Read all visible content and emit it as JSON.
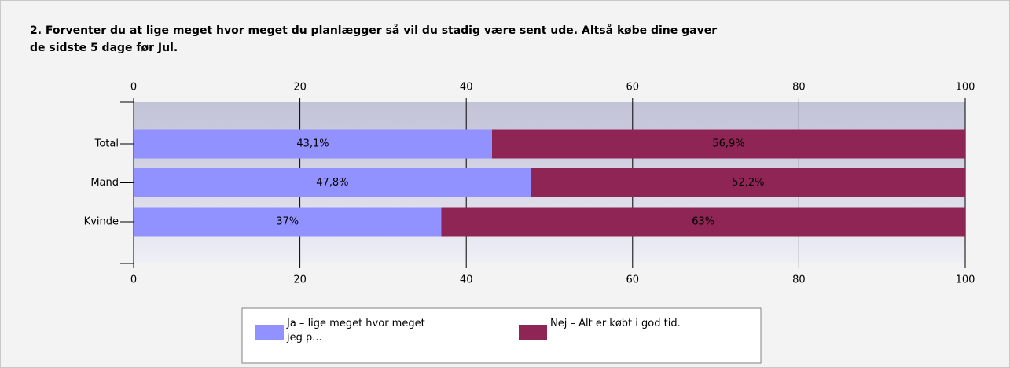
{
  "chart_data": {
    "type": "stacked_bar_horizontal",
    "title": "2. Forventer du at lige meget hvor meget du planlægger så vil du stadig være sent ude. Altså købe dine gaver\nde sidste 5 dage før Jul.",
    "categories": [
      "Total",
      "Mand",
      "Kvinde"
    ],
    "series": [
      {
        "name": "Ja – lige meget hvor meget\njeg p...",
        "color": "#9191ff",
        "values": [
          43.1,
          47.8,
          37
        ],
        "value_labels": [
          "43,1%",
          "47,8%",
          "37%"
        ]
      },
      {
        "name": "Nej – Alt er købt i god tid.",
        "color": "#8e2554",
        "values": [
          56.9,
          52.2,
          63
        ],
        "value_labels": [
          "56,9%",
          "52,2%",
          "63%"
        ]
      }
    ],
    "xlim": [
      0,
      100
    ],
    "xticks": [
      0,
      20,
      40,
      60,
      80,
      100
    ],
    "grid": true
  }
}
